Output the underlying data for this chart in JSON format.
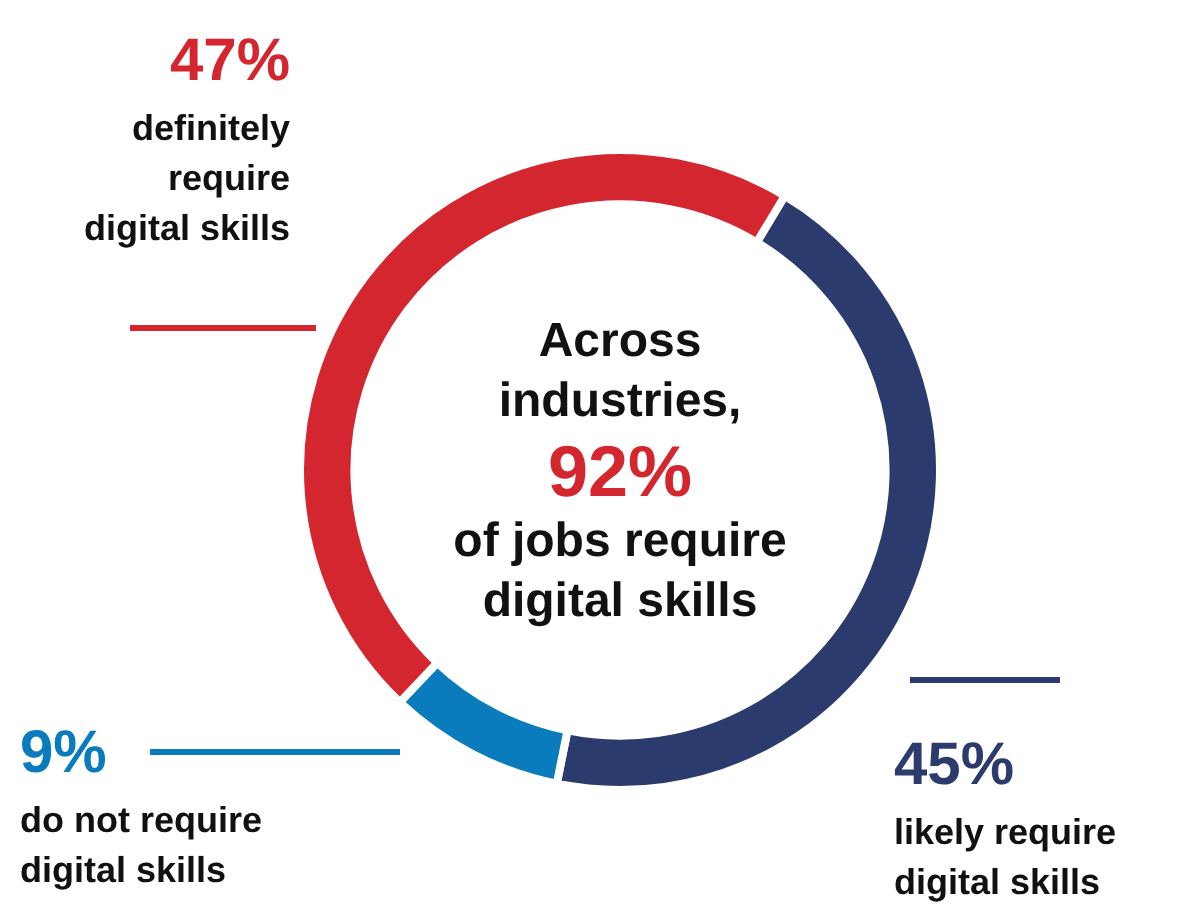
{
  "chart_data": {
    "type": "donut",
    "categories": [
      "likely require digital skills",
      "do not require digital skills",
      "definitely require digital skills"
    ],
    "values": [
      45,
      9,
      47
    ],
    "colors": [
      "#2c3b6e",
      "#0a7bbd",
      "#d4262f"
    ],
    "value_labels": [
      "45%",
      "9%",
      "47%"
    ],
    "annotations": [
      "Across industries,",
      "92%",
      "of jobs require digital skills"
    ],
    "legend": false
  }
}
